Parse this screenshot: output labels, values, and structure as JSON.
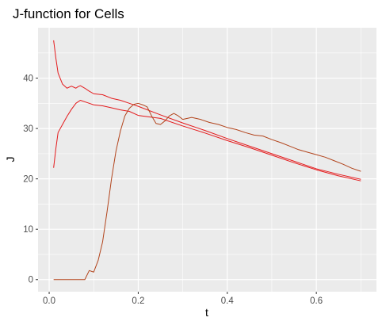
{
  "chart_data": {
    "type": "line",
    "title": "J-function for Cells",
    "xlabel": "t",
    "ylabel": "J",
    "xlim": [
      -0.025,
      0.735
    ],
    "ylim": [
      -2.4,
      50.0
    ],
    "x_ticks": [
      0.0,
      0.2,
      0.4,
      0.6
    ],
    "x_tick_labels": [
      "0.0",
      "0.2",
      "0.4",
      "0.6"
    ],
    "y_ticks": [
      0,
      10,
      20,
      30,
      40
    ],
    "y_tick_labels": [
      "0",
      "10",
      "20",
      "30",
      "40"
    ],
    "grid": true,
    "background": "#ebebeb",
    "grid_color": "#ffffff",
    "series": [
      {
        "color": "#e41a1c",
        "x": [
          0.01,
          0.015,
          0.02,
          0.03,
          0.04,
          0.05,
          0.06,
          0.065,
          0.07,
          0.08,
          0.09,
          0.1,
          0.12,
          0.14,
          0.16,
          0.18,
          0.2,
          0.25,
          0.3,
          0.35,
          0.4,
          0.45,
          0.5,
          0.55,
          0.6,
          0.65,
          0.7
        ],
        "y": [
          47.5,
          44.0,
          41.0,
          38.8,
          38.0,
          38.4,
          38.0,
          38.3,
          38.5,
          38.0,
          37.4,
          36.9,
          36.7,
          36.0,
          35.6,
          35.0,
          34.4,
          32.7,
          31.1,
          29.6,
          28.0,
          26.5,
          25.0,
          23.5,
          22.0,
          20.9,
          19.9
        ]
      },
      {
        "color": "#e41a1c",
        "x": [
          0.01,
          0.015,
          0.02,
          0.03,
          0.04,
          0.05,
          0.06,
          0.07,
          0.08,
          0.09,
          0.1,
          0.12,
          0.14,
          0.16,
          0.18,
          0.2,
          0.25,
          0.3,
          0.35,
          0.4,
          0.45,
          0.5,
          0.55,
          0.6,
          0.65,
          0.7
        ],
        "y": [
          22.2,
          26.0,
          29.2,
          30.8,
          32.4,
          33.8,
          35.0,
          35.6,
          35.3,
          35.0,
          34.7,
          34.5,
          34.1,
          33.7,
          33.4,
          32.6,
          32.0,
          30.5,
          29.1,
          27.6,
          26.2,
          24.7,
          23.2,
          21.8,
          20.6,
          19.6
        ]
      },
      {
        "color": "#b2441c",
        "x": [
          0.01,
          0.02,
          0.04,
          0.06,
          0.08,
          0.09,
          0.1,
          0.11,
          0.12,
          0.13,
          0.14,
          0.15,
          0.16,
          0.17,
          0.18,
          0.19,
          0.2,
          0.21,
          0.22,
          0.23,
          0.24,
          0.25,
          0.26,
          0.27,
          0.28,
          0.29,
          0.3,
          0.32,
          0.34,
          0.36,
          0.38,
          0.4,
          0.42,
          0.44,
          0.46,
          0.48,
          0.5,
          0.52,
          0.54,
          0.56,
          0.58,
          0.6,
          0.62,
          0.64,
          0.66,
          0.68,
          0.7
        ],
        "y": [
          0.0,
          0.0,
          0.0,
          0.0,
          0.0,
          1.8,
          1.5,
          3.8,
          7.5,
          13.5,
          20.0,
          25.5,
          29.5,
          32.5,
          34.0,
          34.8,
          35.0,
          34.7,
          34.3,
          32.5,
          31.0,
          30.8,
          31.5,
          32.5,
          33.0,
          32.5,
          31.8,
          32.2,
          31.8,
          31.2,
          30.8,
          30.2,
          29.8,
          29.2,
          28.7,
          28.5,
          27.8,
          27.2,
          26.5,
          25.8,
          25.3,
          24.8,
          24.3,
          23.6,
          22.9,
          22.1,
          21.5
        ]
      }
    ]
  }
}
